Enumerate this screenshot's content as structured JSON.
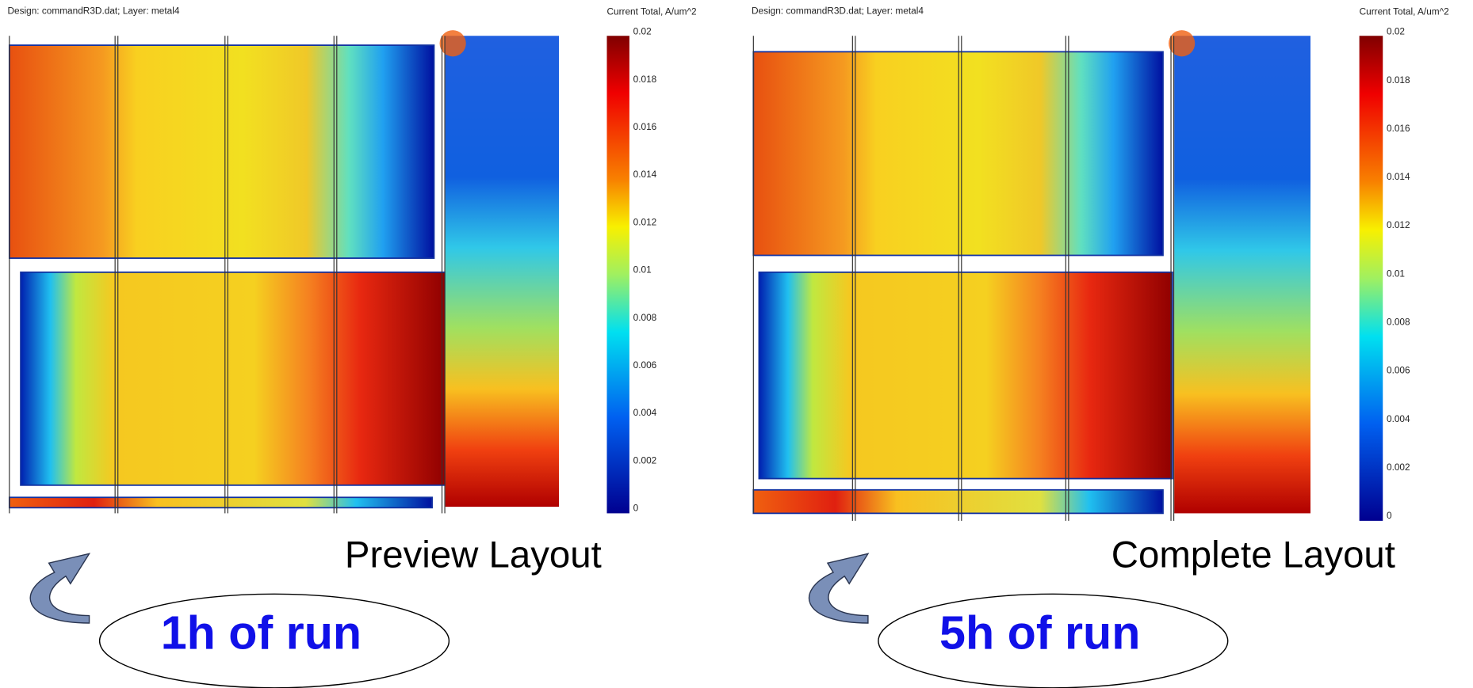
{
  "panels": [
    {
      "header": "Design: commandR3D.dat;   Layer: metal4",
      "colorbar_title": "Current Total, A/um^2",
      "colorbar_ticks": [
        "0.02",
        "0.018",
        "0.016",
        "0.014",
        "0.012",
        "0.01",
        "0.008",
        "0.006",
        "0.004",
        "0.002",
        "0"
      ],
      "caption": "Preview Layout",
      "run_label": "1h of run"
    },
    {
      "header": "Design: commandR3D.dat;   Layer: metal4",
      "colorbar_title": "Current Total, A/um^2",
      "colorbar_ticks": [
        "0.02",
        "0.018",
        "0.016",
        "0.014",
        "0.012",
        "0.01",
        "0.008",
        "0.006",
        "0.004",
        "0.002",
        "0"
      ],
      "caption": "Complete Layout",
      "run_label": "5h of run"
    }
  ]
}
